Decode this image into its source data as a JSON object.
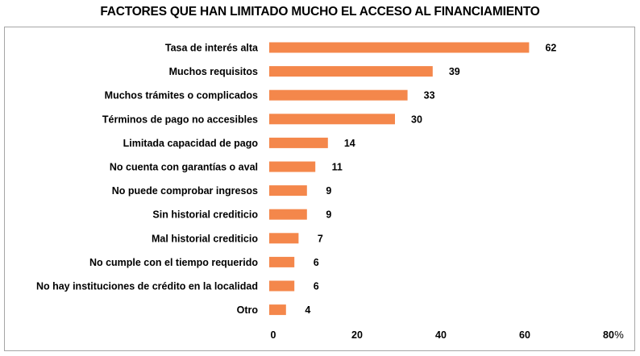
{
  "chart_data": {
    "type": "bar",
    "orientation": "horizontal",
    "title": "FACTORES QUE HAN LIMITADO MUCHO EL ACCESO AL FINANCIAMIENTO",
    "categories": [
      "Tasa de interés alta",
      "Muchos requisitos",
      "Muchos trámites o complicados",
      "Términos de pago no accesibles",
      "Limitada capacidad de pago",
      "No cuenta con garantías o aval",
      "No puede comprobar ingresos",
      "Sin historial crediticio",
      "Mal historial crediticio",
      "No cumple con el tiempo requerido",
      "No hay instituciones de crédito en la localidad",
      "Otro"
    ],
    "values": [
      62,
      39,
      33,
      30,
      14,
      11,
      9,
      9,
      7,
      6,
      6,
      4
    ],
    "xlim": [
      0,
      80
    ],
    "x_ticks": [
      "0",
      "20",
      "40",
      "60",
      "80"
    ],
    "unit": "%",
    "bar_color": "#f4874b",
    "grid": false,
    "legend": "none"
  }
}
